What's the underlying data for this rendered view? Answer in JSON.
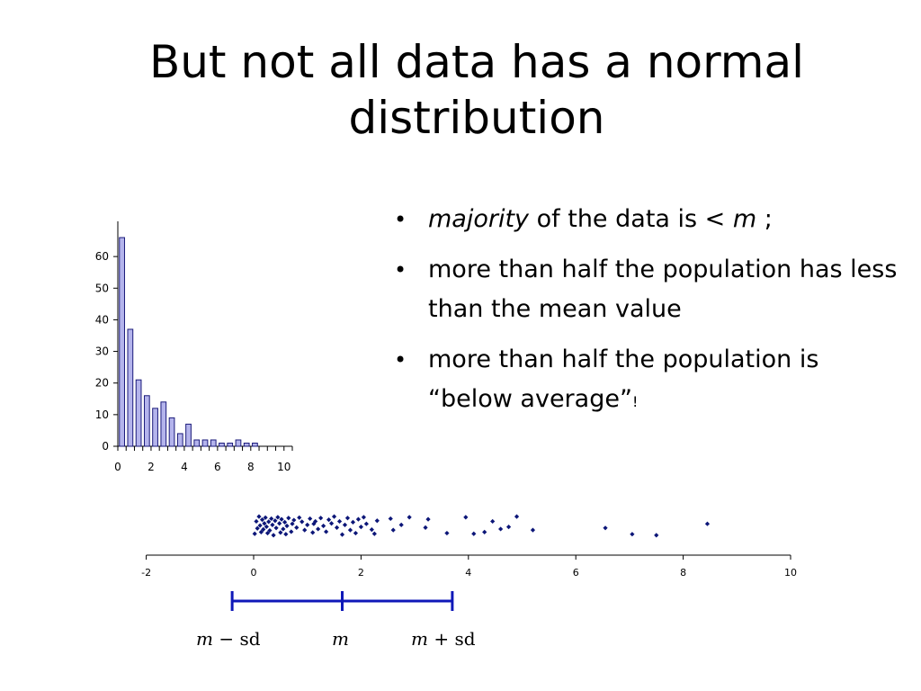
{
  "slide": {
    "title": "But not all data has a normal distribution",
    "bullets": [
      {
        "bullet": "•",
        "em": "majority",
        "text": " of the data is  < ",
        "math": "m",
        "tail": " ;"
      },
      {
        "bullet": "•",
        "text": "more than half the population has less than the mean value"
      },
      {
        "bullet": "•",
        "text": "more than half the population is “below average”",
        "small": "!"
      }
    ],
    "labels": {
      "minus": {
        "m": "m",
        "rest": " − sd"
      },
      "mean": {
        "m": "m"
      },
      "plus": {
        "m": "m",
        "rest": " + sd"
      }
    }
  },
  "chart_data": [
    {
      "type": "bar",
      "x": [
        0.5,
        1.0,
        1.5,
        2.0,
        2.5,
        3.0,
        3.5,
        4.0,
        4.5,
        5.0,
        5.5,
        6.0,
        6.5,
        7.0,
        7.5,
        8.0,
        8.5,
        9.0,
        9.5,
        10.0
      ],
      "values": [
        66,
        37,
        21,
        16,
        12,
        14,
        9,
        4,
        7,
        2,
        2,
        2,
        1,
        1,
        2,
        1,
        1,
        0,
        0,
        0
      ],
      "xlim": [
        0,
        10.5
      ],
      "ylim": [
        0,
        70
      ],
      "xticks": [
        "0",
        "2",
        "4",
        "6",
        "8",
        "10"
      ],
      "yticks": [
        "0",
        "10",
        "20",
        "30",
        "40",
        "50",
        "60"
      ],
      "bar_color": "#b4b4ec",
      "bar_edge": "#1a1a7a",
      "grid": false,
      "legend": "none"
    },
    {
      "type": "scatter",
      "points": [
        [
          0.02,
          0.12
        ],
        [
          0.05,
          0.72
        ],
        [
          0.07,
          0.38
        ],
        [
          0.1,
          0.95
        ],
        [
          0.12,
          0.52
        ],
        [
          0.14,
          0.2
        ],
        [
          0.16,
          0.8
        ],
        [
          0.18,
          0.33
        ],
        [
          0.2,
          0.62
        ],
        [
          0.22,
          0.9
        ],
        [
          0.24,
          0.46
        ],
        [
          0.26,
          0.15
        ],
        [
          0.28,
          0.7
        ],
        [
          0.3,
          0.28
        ],
        [
          0.33,
          0.85
        ],
        [
          0.35,
          0.55
        ],
        [
          0.37,
          0.05
        ],
        [
          0.4,
          0.75
        ],
        [
          0.42,
          0.4
        ],
        [
          0.45,
          0.92
        ],
        [
          0.48,
          0.62
        ],
        [
          0.5,
          0.18
        ],
        [
          0.52,
          0.82
        ],
        [
          0.55,
          0.35
        ],
        [
          0.58,
          0.68
        ],
        [
          0.6,
          0.1
        ],
        [
          0.62,
          0.5
        ],
        [
          0.65,
          0.88
        ],
        [
          0.7,
          0.22
        ],
        [
          0.72,
          0.6
        ],
        [
          0.75,
          0.78
        ],
        [
          0.8,
          0.42
        ],
        [
          0.85,
          0.9
        ],
        [
          0.9,
          0.7
        ],
        [
          0.95,
          0.3
        ],
        [
          1.0,
          0.55
        ],
        [
          1.05,
          0.85
        ],
        [
          1.1,
          0.18
        ],
        [
          1.12,
          0.6
        ],
        [
          1.15,
          0.72
        ],
        [
          1.2,
          0.35
        ],
        [
          1.25,
          0.88
        ],
        [
          1.3,
          0.5
        ],
        [
          1.35,
          0.22
        ],
        [
          1.4,
          0.8
        ],
        [
          1.45,
          0.62
        ],
        [
          1.5,
          0.95
        ],
        [
          1.55,
          0.42
        ],
        [
          1.6,
          0.72
        ],
        [
          1.65,
          0.08
        ],
        [
          1.7,
          0.55
        ],
        [
          1.75,
          0.88
        ],
        [
          1.8,
          0.3
        ],
        [
          1.85,
          0.68
        ],
        [
          1.9,
          0.15
        ],
        [
          1.95,
          0.82
        ],
        [
          2.0,
          0.45
        ],
        [
          2.05,
          0.92
        ],
        [
          2.1,
          0.6
        ],
        [
          2.2,
          0.32
        ],
        [
          2.25,
          0.12
        ],
        [
          2.3,
          0.75
        ],
        [
          2.55,
          0.85
        ],
        [
          2.6,
          0.3
        ],
        [
          2.75,
          0.55
        ],
        [
          2.9,
          0.92
        ],
        [
          3.2,
          0.42
        ],
        [
          3.25,
          0.82
        ],
        [
          3.6,
          0.15
        ],
        [
          3.95,
          0.92
        ],
        [
          4.1,
          0.12
        ],
        [
          4.3,
          0.2
        ],
        [
          4.45,
          0.72
        ],
        [
          4.6,
          0.35
        ],
        [
          4.75,
          0.45
        ],
        [
          4.9,
          0.95
        ],
        [
          5.2,
          0.3
        ],
        [
          6.55,
          0.4
        ],
        [
          7.05,
          0.1
        ],
        [
          7.5,
          0.05
        ],
        [
          8.45,
          0.6
        ]
      ],
      "xlim": [
        -2,
        10
      ],
      "xticks": [
        "-2",
        "0",
        "2",
        "4",
        "6",
        "8",
        "10"
      ],
      "point_color": "#0c1678",
      "grid": false,
      "legend": "none"
    },
    {
      "type": "interval",
      "mean": 1.65,
      "minus_sd": -0.4,
      "plus_sd": 3.7,
      "line_color": "#0f18b8"
    }
  ]
}
